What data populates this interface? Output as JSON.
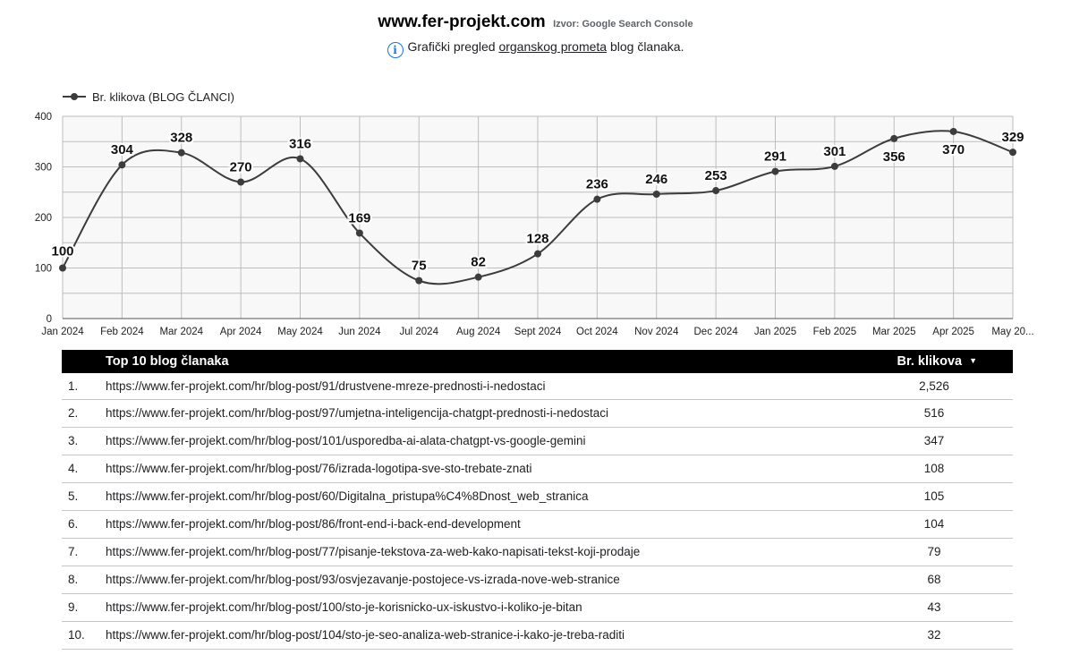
{
  "header": {
    "title": "www.fer-projekt.com",
    "source": "Izvor: Google Search Console",
    "subtitle_before": "Grafički pregled ",
    "subtitle_link": "organskog prometa",
    "subtitle_after": " blog članaka.",
    "info_icon": "info-icon"
  },
  "chart_data": {
    "type": "line",
    "categories": [
      "Jan 2024",
      "Feb 2024",
      "Mar 2024",
      "Apr 2024",
      "May 2024",
      "Jun 2024",
      "Jul 2024",
      "Aug 2024",
      "Sept 2024",
      "Oct 2024",
      "Nov 2024",
      "Dec 2024",
      "Jan 2025",
      "Feb 2025",
      "Mar 2025",
      "Apr 2025",
      "May 20..."
    ],
    "series": [
      {
        "name": "Br. klikova (BLOG ČLANCI)",
        "values": [
          100,
          304,
          328,
          270,
          316,
          169,
          75,
          82,
          128,
          236,
          246,
          253,
          291,
          301,
          356,
          370,
          329
        ]
      }
    ],
    "ylim": [
      0,
      400
    ],
    "yticks": [
      0,
      100,
      200,
      300,
      400
    ],
    "grid": true,
    "legend": "top-left",
    "line_color": "#3c3c3c",
    "plot_background": "#f8f8f8"
  },
  "table": {
    "header_title": "Top 10 blog članaka",
    "header_clicks": "Br. klikova",
    "sort_icon": "▼",
    "rows": [
      {
        "rank": "1.",
        "url": "https://www.fer-projekt.com/hr/blog-post/91/drustvene-mreze-prednosti-i-nedostaci",
        "clicks": "2,526"
      },
      {
        "rank": "2.",
        "url": "https://www.fer-projekt.com/hr/blog-post/97/umjetna-inteligencija-chatgpt-prednosti-i-nedostaci",
        "clicks": "516"
      },
      {
        "rank": "3.",
        "url": "https://www.fer-projekt.com/hr/blog-post/101/usporedba-ai-alata-chatgpt-vs-google-gemini",
        "clicks": "347"
      },
      {
        "rank": "4.",
        "url": "https://www.fer-projekt.com/hr/blog-post/76/izrada-logotipa-sve-sto-trebate-znati",
        "clicks": "108"
      },
      {
        "rank": "5.",
        "url": "https://www.fer-projekt.com/hr/blog-post/60/Digitalna_pristupa%C4%8Dnost_web_stranica",
        "clicks": "105"
      },
      {
        "rank": "6.",
        "url": "https://www.fer-projekt.com/hr/blog-post/86/front-end-i-back-end-development",
        "clicks": "104"
      },
      {
        "rank": "7.",
        "url": "https://www.fer-projekt.com/hr/blog-post/77/pisanje-tekstova-za-web-kako-napisati-tekst-koji-prodaje",
        "clicks": "79"
      },
      {
        "rank": "8.",
        "url": "https://www.fer-projekt.com/hr/blog-post/93/osvjezavanje-postojece-vs-izrada-nove-web-stranice",
        "clicks": "68"
      },
      {
        "rank": "9.",
        "url": "https://www.fer-projekt.com/hr/blog-post/100/sto-je-korisnicko-ux-iskustvo-i-koliko-je-bitan",
        "clicks": "43"
      },
      {
        "rank": "10.",
        "url": "https://www.fer-projekt.com/hr/blog-post/104/sto-je-seo-analiza-web-stranice-i-kako-je-treba-raditi",
        "clicks": "32"
      }
    ]
  }
}
